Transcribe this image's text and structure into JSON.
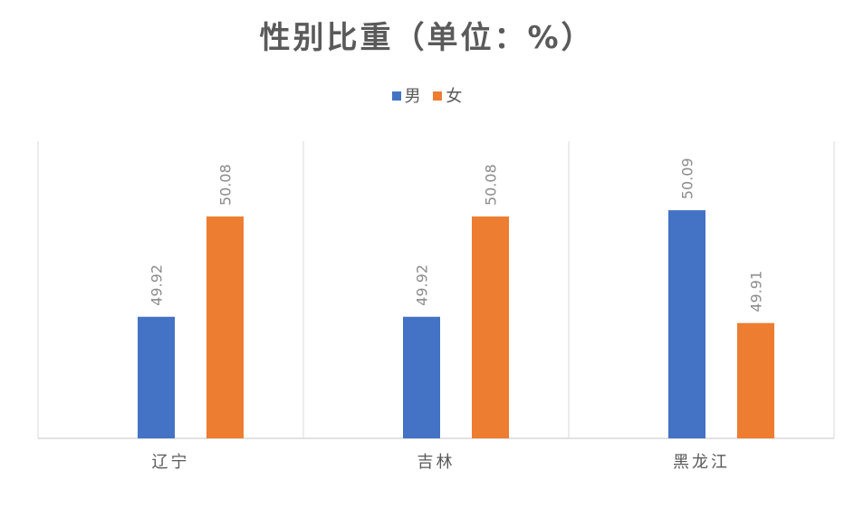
{
  "chart_data": {
    "type": "bar",
    "title": "性别比重（单位：%）",
    "categories": [
      "辽宁",
      "吉林",
      "黑龙江"
    ],
    "series": [
      {
        "name": "男",
        "color": "#4472c4",
        "values": [
          49.92,
          49.92,
          50.09
        ],
        "labels": [
          "49.92",
          "49.92",
          "50.09"
        ]
      },
      {
        "name": "女",
        "color": "#ed7d31",
        "values": [
          50.08,
          50.08,
          49.91
        ],
        "labels": [
          "50.08",
          "50.08",
          "49.91"
        ]
      }
    ],
    "xlabel": "",
    "ylabel": "",
    "ylim": [
      49.8,
      50.2
    ],
    "y_axis_visible": false,
    "grid": "vertical category separators",
    "legend_position": "top",
    "data_labels": "rotated above bars"
  }
}
